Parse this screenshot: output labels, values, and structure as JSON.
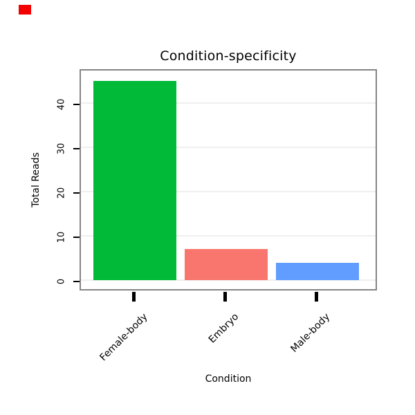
{
  "decorations": {
    "red_marker": {
      "color": "#f40000"
    }
  },
  "chart_data": {
    "type": "bar",
    "title": "Condition-specificity",
    "xlabel": "Condition",
    "ylabel": "Total Reads",
    "categories": [
      "Female-body",
      "Embryo",
      "Male-body"
    ],
    "values": [
      45,
      7,
      4
    ],
    "bar_colors": [
      "#00BA38",
      "#F8766D",
      "#619CFF"
    ],
    "yticks": [
      0,
      10,
      20,
      30,
      40
    ],
    "ylim": [
      -2,
      48
    ],
    "grid": true,
    "legend_position": "none"
  }
}
